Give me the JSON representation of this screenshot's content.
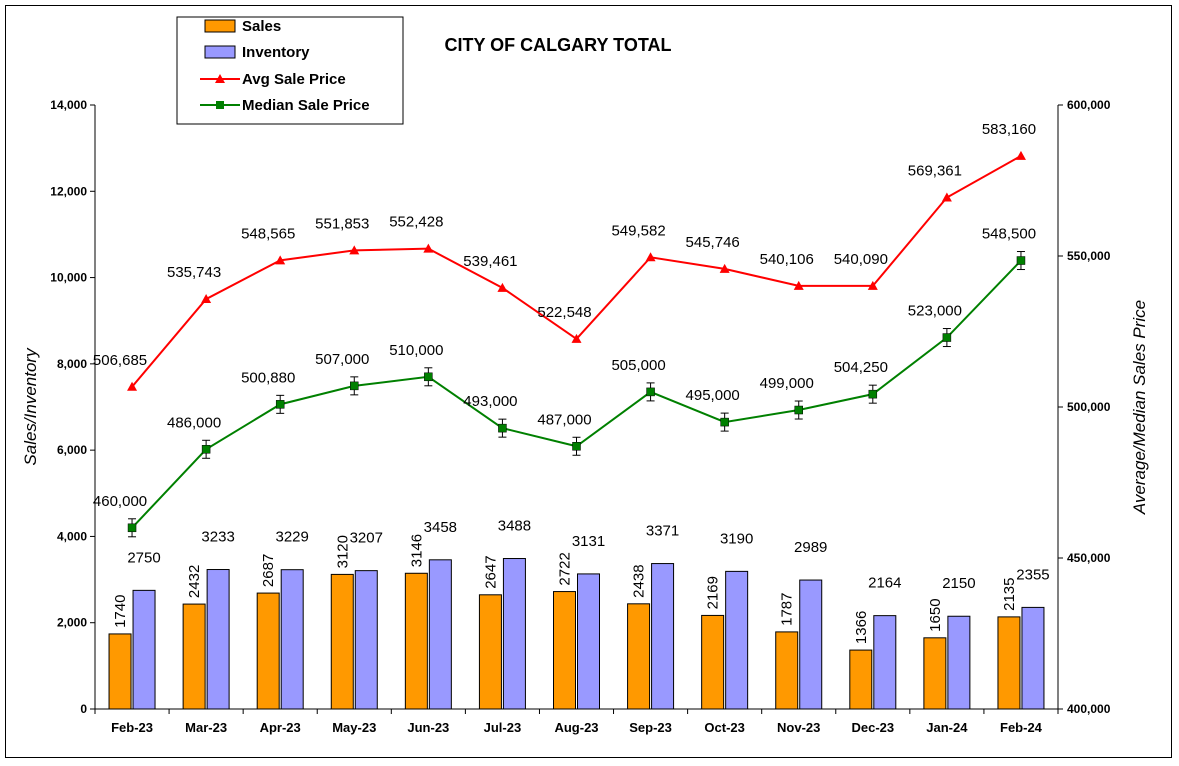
{
  "chart_data": {
    "type": "bar",
    "title": "CITY OF CALGARY TOTAL",
    "ylabel": "Sales/Inventory",
    "y2label": "Average/Median Sales Price",
    "ylim": [
      0,
      14000
    ],
    "y2lim": [
      400000,
      600000
    ],
    "y_ticks": [
      "0",
      "2,000",
      "4,000",
      "6,000",
      "8,000",
      "10,000",
      "12,000",
      "14,000"
    ],
    "y2_ticks": [
      "400,000",
      "450,000",
      "500,000",
      "550,000",
      "600,000"
    ],
    "categories": [
      "Feb-23",
      "Mar-23",
      "Apr-23",
      "May-23",
      "Jun-23",
      "Jul-23",
      "Aug-23",
      "Sep-23",
      "Oct-23",
      "Nov-23",
      "Dec-23",
      "Jan-24",
      "Feb-24"
    ],
    "legend_position": "top-left",
    "series": [
      {
        "name": "Sales",
        "type": "bar",
        "axis": "left",
        "color": "#FF9900",
        "values": [
          1740,
          2432,
          2687,
          3120,
          3146,
          2647,
          2722,
          2438,
          2169,
          1787,
          1366,
          1650,
          2135
        ]
      },
      {
        "name": "Inventory",
        "type": "bar",
        "axis": "left",
        "color": "#9999FF",
        "values": [
          2750,
          3233,
          3229,
          3207,
          3458,
          3488,
          3131,
          3371,
          3190,
          2989,
          2164,
          2150,
          2355
        ]
      },
      {
        "name": "Avg Sale Price",
        "type": "line",
        "axis": "right",
        "color": "#FF0000",
        "marker": "triangle",
        "values": [
          506685,
          535743,
          548565,
          551853,
          552428,
          539461,
          522548,
          549582,
          545746,
          540106,
          540090,
          569361,
          583160
        ],
        "labels": [
          "506,685",
          "535,743",
          "548,565",
          "551,853",
          "552,428",
          "539,461",
          "522,548",
          "549,582",
          "545,746",
          "540,106",
          "540,090",
          "569,361",
          "583,160"
        ]
      },
      {
        "name": "Median Sale Price",
        "type": "line",
        "axis": "right",
        "color": "#008000",
        "marker": "square",
        "values": [
          460000,
          486000,
          500880,
          507000,
          510000,
          493000,
          487000,
          505000,
          495000,
          499000,
          504250,
          523000,
          548500
        ],
        "labels": [
          "460,000",
          "486,000",
          "500,880",
          "507,000",
          "510,000",
          "493,000",
          "487,000",
          "505,000",
          "495,000",
          "499,000",
          "504,250",
          "523,000",
          "548,500"
        ]
      }
    ],
    "grid": false
  }
}
